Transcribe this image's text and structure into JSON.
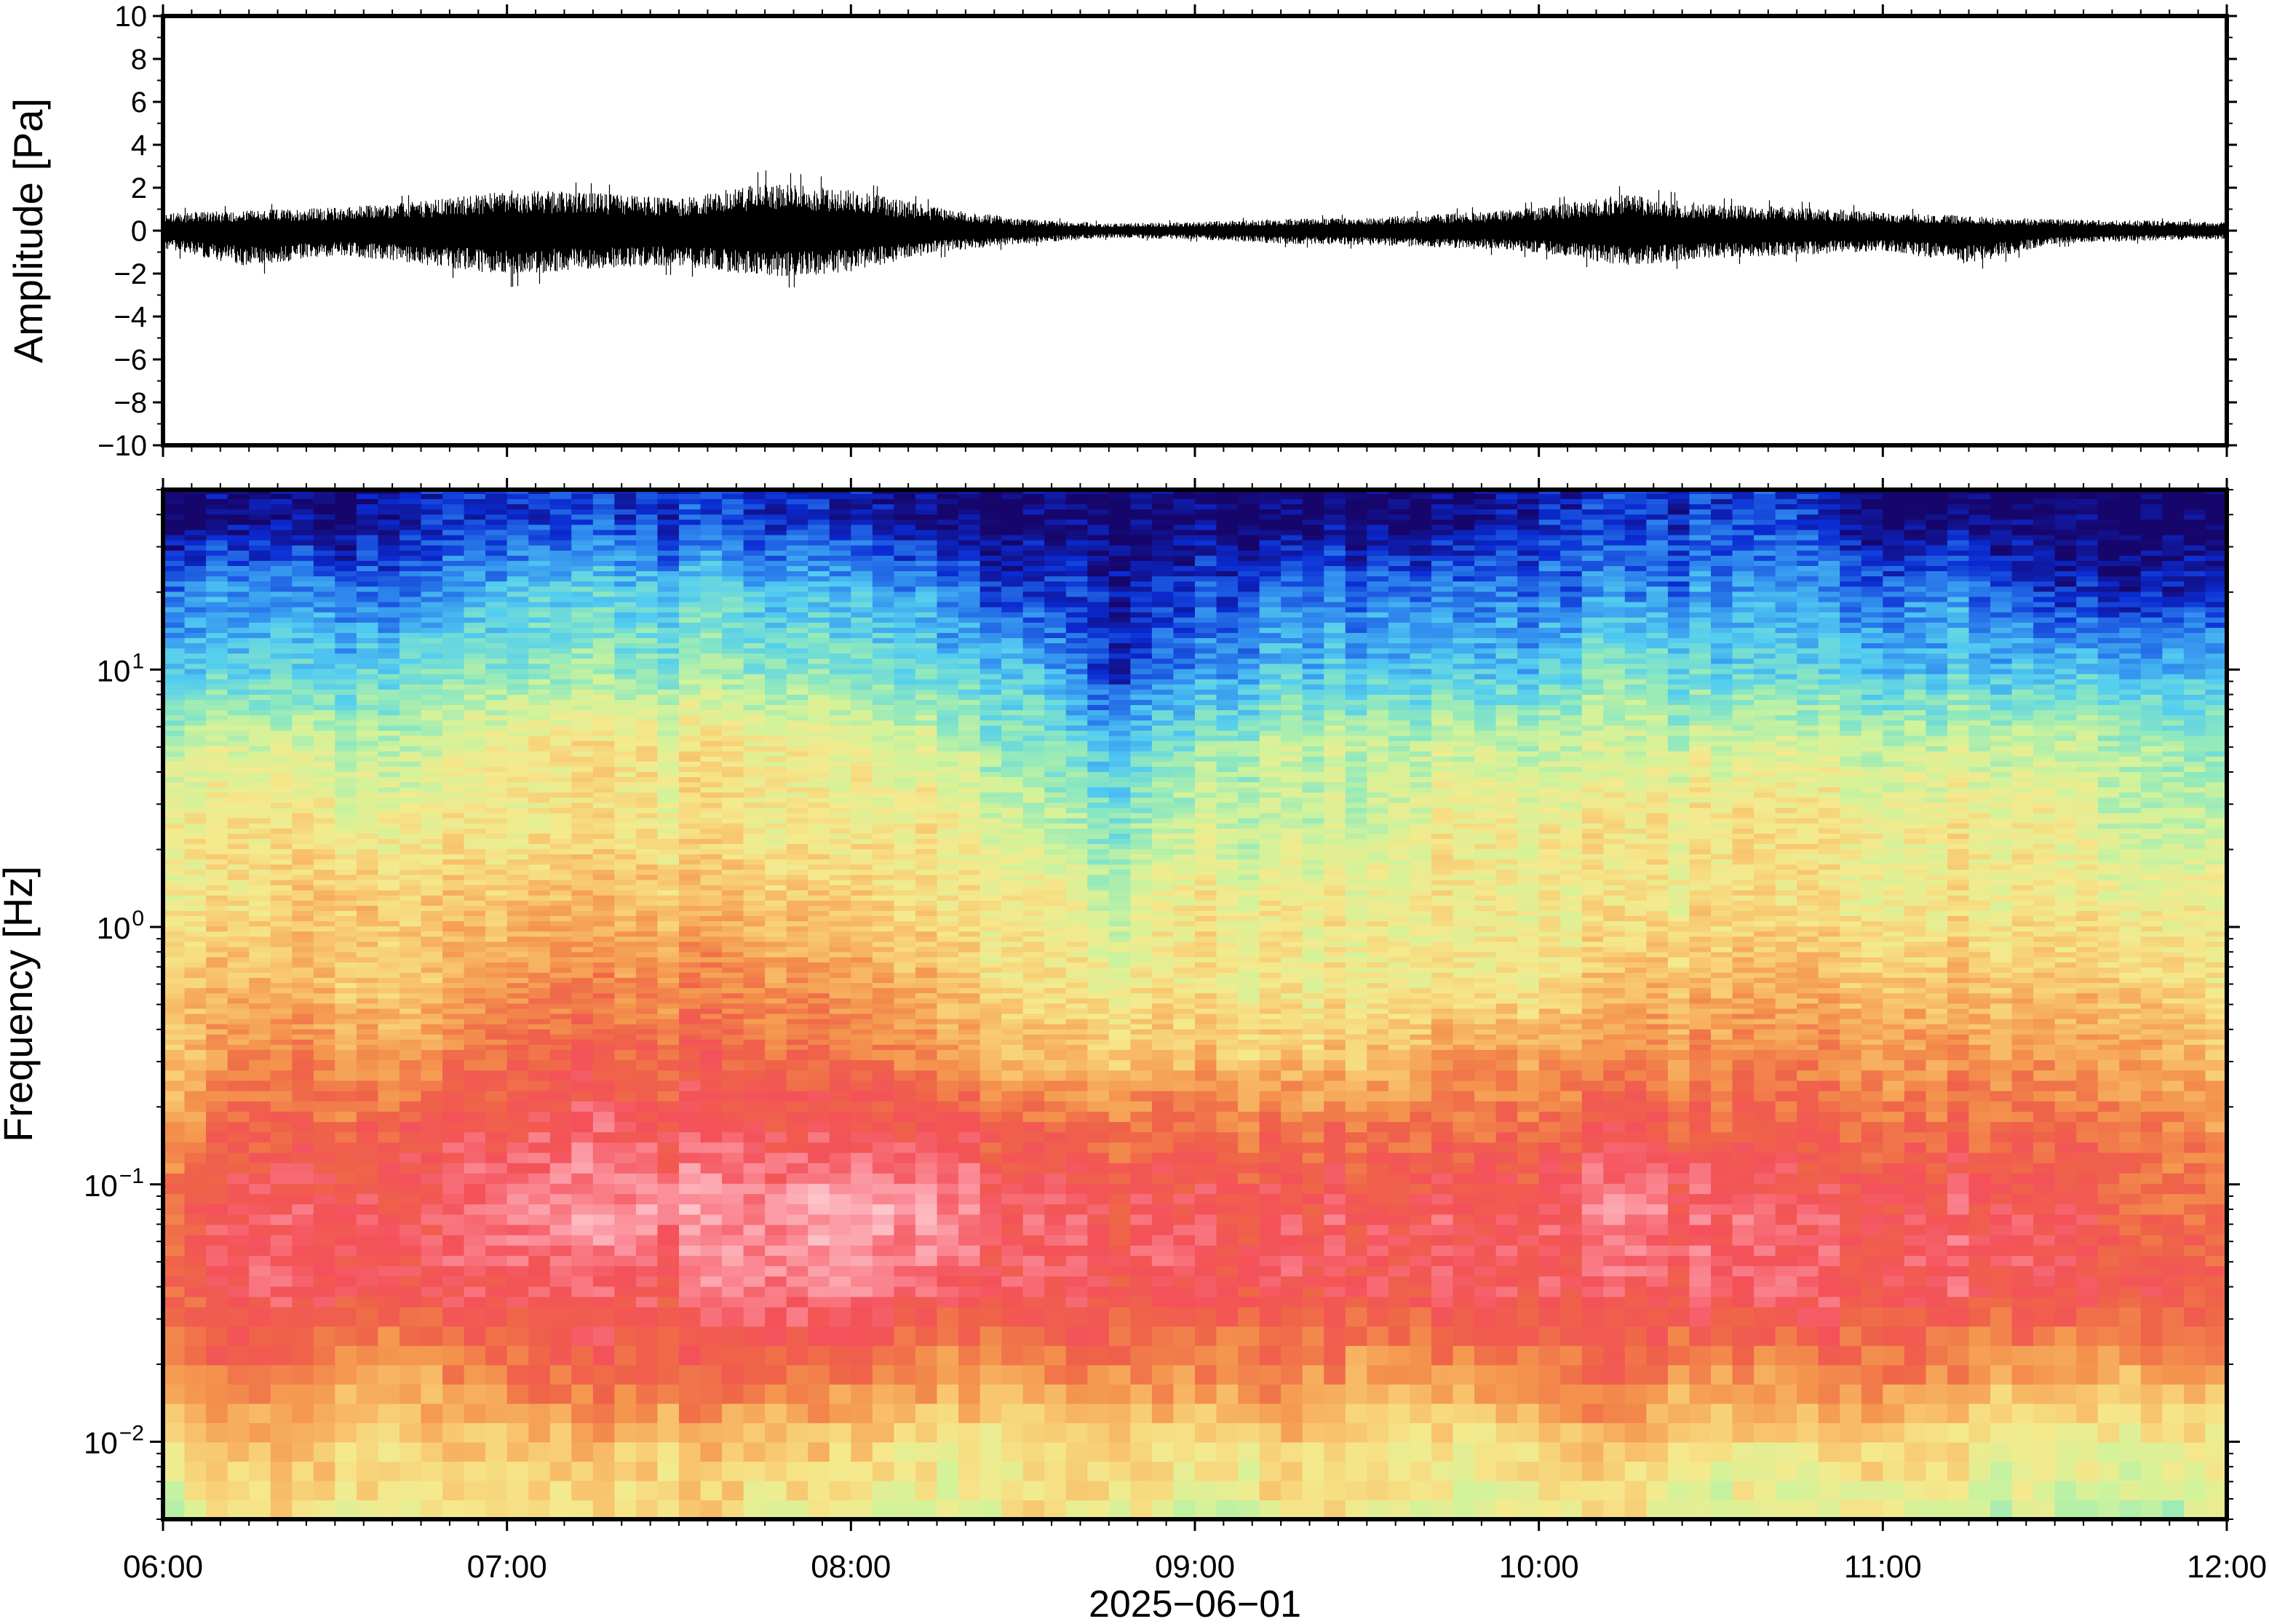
{
  "chart_data": [
    {
      "type": "line",
      "ylabel": "Amplitude [Pa]",
      "ylim": [
        -10,
        10
      ],
      "y_ticks": [
        10,
        8,
        6,
        4,
        2,
        0,
        -2,
        -4,
        -6,
        -8,
        -10
      ],
      "y_tick_labels": [
        "10",
        "8",
        "6",
        "4",
        "2",
        "0",
        "−2",
        "−4",
        "−6",
        "−8",
        "−10"
      ],
      "xlim": [
        "2025-06-01 06:00",
        "2025-06-01 12:00"
      ],
      "series": [
        {
          "color": "#000000",
          "x_hours": [
            6.0,
            6.25,
            6.5,
            6.75,
            7.0,
            7.25,
            7.5,
            7.75,
            8.0,
            8.25,
            8.5,
            8.75,
            9.0,
            9.25,
            9.5,
            9.75,
            10.0,
            10.25,
            10.5,
            10.75,
            11.0,
            11.25,
            11.5,
            11.75,
            12.0
          ],
          "envelope_max": [
            1.2,
            1.4,
            1.6,
            2.0,
            2.8,
            2.6,
            2.2,
            3.3,
            2.8,
            1.6,
            0.8,
            0.5,
            0.6,
            0.8,
            0.9,
            1.2,
            1.6,
            2.5,
            1.8,
            1.6,
            1.3,
            1.0,
            0.8,
            0.7,
            0.6
          ],
          "envelope_min": [
            -1.3,
            -2.5,
            -1.7,
            -2.3,
            -3.1,
            -2.6,
            -2.4,
            -3.2,
            -2.9,
            -1.5,
            -0.9,
            -0.5,
            -0.6,
            -0.9,
            -1.0,
            -1.2,
            -1.5,
            -2.4,
            -1.9,
            -1.7,
            -1.4,
            -2.3,
            -0.9,
            -0.7,
            -0.6
          ]
        }
      ]
    },
    {
      "type": "heatmap",
      "ylabel": "Frequency [Hz]",
      "xlabel": "2025−06−01",
      "y_scale": "log",
      "ylim": [
        0.005,
        50
      ],
      "y_ticks": [
        0.01,
        0.1,
        1,
        10
      ],
      "y_tick_labels": [
        {
          "base": "10",
          "exp": "−2"
        },
        {
          "base": "10",
          "exp": "−1"
        },
        {
          "base": "10",
          "exp": "0"
        },
        {
          "base": "10",
          "exp": "1"
        }
      ],
      "x_tick_labels": [
        "06:00",
        "07:00",
        "08:00",
        "09:00",
        "10:00",
        "11:00",
        "12:00"
      ],
      "xlim": [
        "2025-06-01 06:00",
        "2025-06-01 12:00"
      ],
      "colormap": [
        "#16066c",
        "#0a2bd2",
        "#2f88ee",
        "#53cdf0",
        "#8de8bf",
        "#d1f39a",
        "#f5e98d",
        "#f8c36c",
        "#f4964e",
        "#ef6448",
        "#f4515a",
        "#fb8f9a",
        "#fdc6cb"
      ],
      "band_profile_note": "",
      "time_columns_hours": [
        6.0,
        6.25,
        6.5,
        6.75,
        7.0,
        7.25,
        7.5,
        7.75,
        8.0,
        8.25,
        8.5,
        8.75,
        9.0,
        9.25,
        9.5,
        9.75,
        10.0,
        10.25,
        10.5,
        10.75,
        11.0,
        11.25,
        11.5,
        11.75,
        12.0
      ],
      "log10_freq_rows": [
        -2.3,
        -2.0,
        -1.7,
        -1.4,
        -1.1,
        -0.8,
        -0.5,
        -0.2,
        0.1,
        0.4,
        0.7,
        1.0,
        1.3,
        1.6
      ],
      "intensity_levels": [
        [
          5,
          6,
          6,
          6,
          6,
          6,
          6,
          6,
          6,
          5,
          6,
          6,
          5,
          6,
          6,
          5,
          6,
          6,
          5,
          5,
          6,
          5,
          5,
          5,
          5
        ],
        [
          6,
          7,
          7,
          7,
          7,
          7,
          7,
          7,
          7,
          6,
          6,
          7,
          6,
          7,
          7,
          6,
          7,
          7,
          6,
          6,
          7,
          6,
          6,
          6,
          6
        ],
        [
          8,
          9,
          8,
          8,
          9,
          9,
          9,
          9,
          9,
          8,
          8,
          9,
          8,
          9,
          8,
          8,
          9,
          9,
          8,
          8,
          9,
          8,
          8,
          8,
          8
        ],
        [
          9,
          10,
          10,
          10,
          10,
          10,
          10,
          11,
          11,
          10,
          10,
          10,
          10,
          10,
          10,
          10,
          10,
          10,
          10,
          10,
          10,
          10,
          10,
          10,
          9
        ],
        [
          9,
          10,
          10,
          10,
          11,
          11,
          11,
          11,
          12,
          11,
          10,
          10,
          10,
          10,
          10,
          10,
          10,
          11,
          10,
          10,
          10,
          10,
          10,
          9,
          9
        ],
        [
          8,
          9,
          9,
          10,
          10,
          10,
          10,
          10,
          10,
          10,
          9,
          9,
          9,
          9,
          9,
          9,
          9,
          10,
          9,
          9,
          9,
          9,
          9,
          9,
          8
        ],
        [
          7,
          8,
          8,
          8,
          9,
          9,
          9,
          9,
          9,
          8,
          7,
          7,
          7,
          7,
          7,
          8,
          8,
          8,
          8,
          8,
          8,
          8,
          8,
          8,
          7
        ],
        [
          7,
          7,
          7,
          7,
          8,
          8,
          8,
          8,
          8,
          7,
          6,
          6,
          6,
          6,
          6,
          6,
          6,
          7,
          7,
          7,
          7,
          7,
          7,
          7,
          6
        ],
        [
          6,
          6,
          7,
          7,
          7,
          7,
          7,
          7,
          7,
          6,
          6,
          5,
          6,
          6,
          6,
          6,
          6,
          6,
          6,
          6,
          6,
          6,
          6,
          6,
          6
        ],
        [
          6,
          6,
          6,
          6,
          6,
          6,
          6,
          6,
          6,
          6,
          5,
          4,
          5,
          5,
          5,
          6,
          6,
          6,
          6,
          6,
          6,
          6,
          6,
          5,
          5
        ],
        [
          5,
          5,
          5,
          5,
          6,
          6,
          6,
          6,
          6,
          5,
          4,
          3,
          4,
          5,
          5,
          5,
          5,
          5,
          5,
          5,
          5,
          5,
          5,
          5,
          4
        ],
        [
          3,
          3,
          3,
          4,
          4,
          4,
          4,
          4,
          4,
          3,
          3,
          1,
          2,
          3,
          3,
          3,
          3,
          4,
          3,
          3,
          3,
          3,
          3,
          3,
          3
        ],
        [
          2,
          2,
          2,
          2,
          3,
          3,
          3,
          3,
          3,
          2,
          1,
          1,
          1,
          2,
          2,
          2,
          2,
          2,
          2,
          2,
          2,
          2,
          1,
          1,
          1
        ],
        [
          0,
          0,
          0,
          1,
          1,
          1,
          1,
          1,
          1,
          0,
          0,
          0,
          0,
          0,
          0,
          0,
          1,
          1,
          1,
          1,
          0,
          0,
          0,
          0,
          0
        ]
      ]
    }
  ]
}
